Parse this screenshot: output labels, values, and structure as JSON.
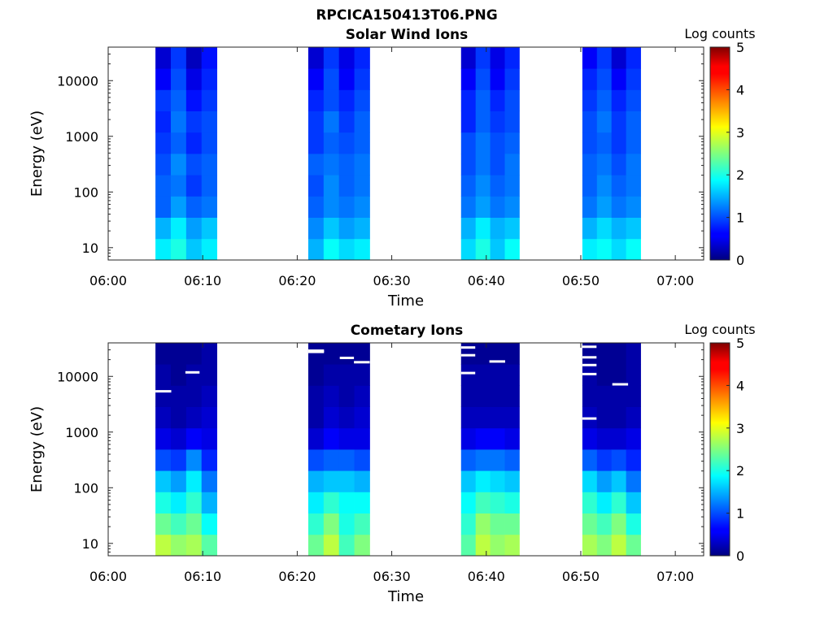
{
  "figure": {
    "title": "RPCICA150413T06.PNG"
  },
  "chart_data": [
    {
      "type": "heatmap",
      "title": "Solar Wind Ions",
      "xlabel": "Time",
      "ylabel": "Energy (eV)",
      "yscale": "log",
      "xlim": [
        "06:00",
        "07:03"
      ],
      "ylim": [
        6,
        40000
      ],
      "x_ticks": [
        "06:00",
        "06:10",
        "06:20",
        "06:30",
        "06:40",
        "06:50",
        "07:00"
      ],
      "y_ticks": [
        10,
        100,
        1000,
        10000
      ],
      "y_tick_labels": [
        "10",
        "100",
        "1000",
        "10000"
      ],
      "colorbar": {
        "label": "Log counts",
        "min": 0,
        "max": 5,
        "ticks": [
          "0",
          "1",
          "2",
          "3",
          "4",
          "5"
        ],
        "colormap": "jet"
      },
      "scans": [
        {
          "start": "06:05",
          "end": "06:11:30",
          "columns": [
            [
              1.8,
              1.5,
              1.1,
              1.1,
              1.0,
              0.9,
              0.8,
              0.9,
              0.6,
              0.4
            ],
            [
              2.0,
              1.8,
              1.4,
              1.2,
              1.3,
              1.1,
              1.2,
              1.1,
              1.0,
              0.9
            ],
            [
              1.6,
              1.4,
              1.1,
              0.9,
              1.0,
              0.8,
              0.9,
              0.7,
              0.5,
              0.3
            ],
            [
              1.8,
              1.6,
              1.2,
              1.1,
              1.1,
              1.0,
              1.0,
              0.9,
              0.8,
              0.7
            ]
          ]
        },
        {
          "start": "06:21:10",
          "end": "06:27:40",
          "columns": [
            [
              1.5,
              1.3,
              1.1,
              1.0,
              1.1,
              0.9,
              0.9,
              0.8,
              0.6,
              0.4
            ],
            [
              1.9,
              1.6,
              1.3,
              1.3,
              1.2,
              1.1,
              1.2,
              1.0,
              1.0,
              0.9
            ],
            [
              1.7,
              1.4,
              1.2,
              1.1,
              1.1,
              1.0,
              0.9,
              0.8,
              0.6,
              0.5
            ],
            [
              1.8,
              1.5,
              1.3,
              1.2,
              1.2,
              1.1,
              1.1,
              1.0,
              0.9,
              0.8
            ]
          ]
        },
        {
          "start": "06:37:20",
          "end": "06:43:30",
          "columns": [
            [
              1.7,
              1.5,
              1.2,
              1.1,
              1.0,
              1.0,
              0.8,
              0.8,
              0.6,
              0.4
            ],
            [
              2.0,
              1.8,
              1.4,
              1.3,
              1.2,
              1.2,
              1.1,
              1.1,
              1.0,
              0.9
            ],
            [
              1.6,
              1.5,
              1.2,
              1.1,
              1.0,
              1.0,
              0.9,
              0.8,
              0.6,
              0.5
            ],
            [
              1.9,
              1.6,
              1.3,
              1.2,
              1.2,
              1.1,
              1.0,
              1.0,
              0.9,
              0.8
            ]
          ]
        },
        {
          "start": "06:50:10",
          "end": "06:56:20",
          "columns": [
            [
              1.8,
              1.5,
              1.2,
              1.1,
              1.1,
              1.0,
              1.0,
              0.9,
              0.8,
              0.6
            ],
            [
              1.9,
              1.7,
              1.4,
              1.3,
              1.2,
              1.1,
              1.2,
              1.1,
              1.0,
              0.9
            ],
            [
              1.7,
              1.5,
              1.2,
              1.1,
              1.0,
              0.9,
              0.9,
              0.8,
              0.6,
              0.4
            ],
            [
              1.9,
              1.6,
              1.3,
              1.2,
              1.2,
              1.1,
              1.1,
              1.0,
              0.9,
              0.8
            ]
          ]
        }
      ]
    },
    {
      "type": "heatmap",
      "title": "Cometary Ions",
      "xlabel": "Time",
      "ylabel": "Energy (eV)",
      "yscale": "log",
      "xlim": [
        "06:00",
        "07:03"
      ],
      "ylim": [
        6,
        40000
      ],
      "x_ticks": [
        "06:00",
        "06:10",
        "06:20",
        "06:30",
        "06:40",
        "06:50",
        "07:00"
      ],
      "y_ticks": [
        10,
        100,
        1000,
        10000
      ],
      "y_tick_labels": [
        "10",
        "100",
        "1000",
        "10000"
      ],
      "colorbar": {
        "label": "Log counts",
        "min": 0,
        "max": 5,
        "ticks": [
          "0",
          "1",
          "2",
          "3",
          "4",
          "5"
        ],
        "colormap": "jet"
      },
      "scans": [
        {
          "start": "06:05",
          "end": "06:11:30",
          "columns": [
            [
              2.8,
              2.4,
              2.0,
              1.6,
              1.0,
              0.5,
              0.3,
              0.2,
              0.2,
              0.1
            ],
            [
              2.6,
              2.2,
              1.8,
              1.4,
              0.9,
              0.4,
              0.2,
              0.2,
              0.1,
              0.1
            ],
            [
              2.7,
              2.4,
              2.1,
              1.8,
              1.3,
              0.6,
              0.3,
              0.2,
              0.2,
              0.1
            ],
            [
              2.3,
              1.9,
              1.5,
              1.2,
              0.8,
              0.5,
              0.4,
              0.3,
              0.2,
              0.2
            ]
          ]
        },
        {
          "start": "06:21:10",
          "end": "06:27:40",
          "columns": [
            [
              2.4,
              2.1,
              1.8,
              1.5,
              1.0,
              0.4,
              0.2,
              0.2,
              0.1,
              0.1
            ],
            [
              2.8,
              2.5,
              2.1,
              1.6,
              1.1,
              0.6,
              0.4,
              0.3,
              0.2,
              0.1
            ],
            [
              2.2,
              2.0,
              1.9,
              1.6,
              1.1,
              0.5,
              0.3,
              0.2,
              0.2,
              0.1
            ],
            [
              2.5,
              2.2,
              1.9,
              1.5,
              1.0,
              0.5,
              0.4,
              0.3,
              0.2,
              0.1
            ]
          ]
        },
        {
          "start": "06:37:20",
          "end": "06:43:30",
          "columns": [
            [
              2.3,
              2.1,
              1.9,
              1.6,
              1.1,
              0.5,
              0.3,
              0.2,
              0.2,
              0.1
            ],
            [
              2.8,
              2.6,
              2.2,
              1.8,
              1.2,
              0.6,
              0.3,
              0.2,
              0.2,
              0.1
            ],
            [
              2.6,
              2.4,
              2.1,
              1.7,
              1.2,
              0.6,
              0.3,
              0.2,
              0.2,
              0.1
            ],
            [
              2.7,
              2.4,
              2.0,
              1.6,
              1.1,
              0.5,
              0.3,
              0.2,
              0.2,
              0.1
            ]
          ]
        },
        {
          "start": "06:50:10",
          "end": "06:56:20",
          "columns": [
            [
              2.7,
              2.4,
              2.1,
              1.7,
              1.1,
              0.5,
              0.3,
              0.2,
              0.2,
              0.1
            ],
            [
              2.5,
              2.2,
              1.8,
              1.4,
              0.9,
              0.4,
              0.2,
              0.2,
              0.1,
              0.1
            ],
            [
              2.8,
              2.5,
              2.1,
              1.6,
              1.0,
              0.4,
              0.2,
              0.2,
              0.1,
              0.1
            ],
            [
              2.4,
              2.0,
              1.6,
              1.2,
              0.8,
              0.5,
              0.3,
              0.2,
              0.2,
              0.2
            ]
          ]
        }
      ],
      "gap_markers": [
        {
          "t1": "06:05",
          "t2": "06:06:40",
          "energy": 5400
        },
        {
          "t1": "06:08:10",
          "t2": "06:09:40",
          "energy": 11800
        },
        {
          "t1": "06:21:10",
          "t2": "06:22:50",
          "energy": 29000
        },
        {
          "t1": "06:21:10",
          "t2": "06:22:50",
          "energy": 27500
        },
        {
          "t1": "06:24:30",
          "t2": "06:26:00",
          "energy": 21500
        },
        {
          "t1": "06:26:00",
          "t2": "06:27:40",
          "energy": 18000
        },
        {
          "t1": "06:37:20",
          "t2": "06:38:50",
          "energy": 33000
        },
        {
          "t1": "06:37:20",
          "t2": "06:38:50",
          "energy": 24000
        },
        {
          "t1": "06:37:20",
          "t2": "06:38:50",
          "energy": 11500
        },
        {
          "t1": "06:40:20",
          "t2": "06:42:00",
          "energy": 18500
        },
        {
          "t1": "06:50:10",
          "t2": "06:51:40",
          "energy": 34000
        },
        {
          "t1": "06:50:10",
          "t2": "06:51:40",
          "energy": 22000
        },
        {
          "t1": "06:50:10",
          "t2": "06:51:40",
          "energy": 16000
        },
        {
          "t1": "06:50:10",
          "t2": "06:51:40",
          "energy": 11000
        },
        {
          "t1": "06:50:10",
          "t2": "06:51:40",
          "energy": 1750
        },
        {
          "t1": "06:53:20",
          "t2": "06:55:00",
          "energy": 7200
        }
      ]
    }
  ]
}
